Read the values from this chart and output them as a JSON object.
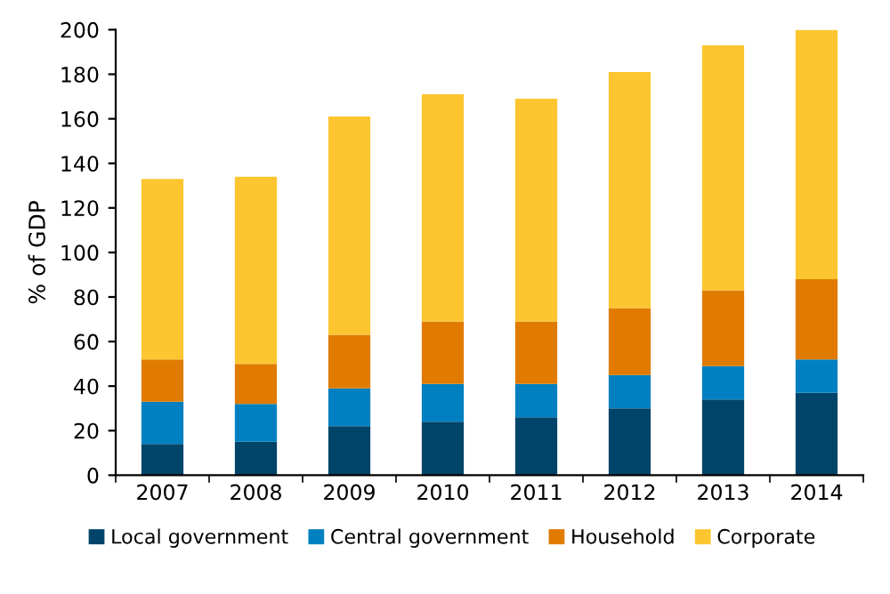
{
  "chart_data": {
    "type": "bar",
    "stacked": true,
    "ylabel": "% of GDP",
    "categories": [
      "2007",
      "2008",
      "2009",
      "2010",
      "2011",
      "2012",
      "2013",
      "2014"
    ],
    "series": [
      {
        "name": "Local government",
        "color": "#004469",
        "values": [
          14,
          15,
          22,
          24,
          26,
          30,
          34,
          37
        ]
      },
      {
        "name": "Central government",
        "color": "#0080c0",
        "values": [
          19,
          17,
          17,
          17,
          15,
          15,
          15,
          15
        ]
      },
      {
        "name": "Household",
        "color": "#e07b00",
        "values": [
          19,
          18,
          24,
          28,
          28,
          30,
          34,
          36
        ]
      },
      {
        "name": "Corporate",
        "color": "#fdc630",
        "values": [
          81,
          84,
          98,
          102,
          100,
          106,
          110,
          112
        ]
      }
    ],
    "ylim": [
      0,
      200
    ],
    "yticks": [
      0,
      20,
      40,
      60,
      80,
      100,
      120,
      140,
      160,
      180,
      200
    ],
    "grid": false,
    "legend": "bottom"
  }
}
